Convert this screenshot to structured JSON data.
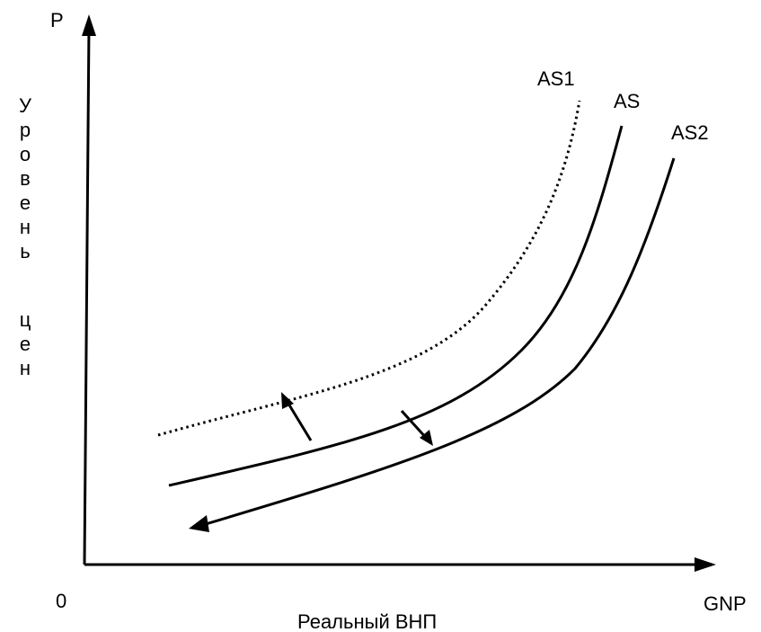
{
  "axes": {
    "y_name": "P",
    "x_name": "GNP",
    "origin": "0",
    "x_title": "Реальный ВНП",
    "y_title_word1": [
      "У",
      "р",
      "о",
      "в",
      "е",
      "н",
      "ь"
    ],
    "y_title_word2": [
      "ц",
      "е",
      "н"
    ]
  },
  "curves": {
    "as1": {
      "label": "AS1",
      "style": "dotted"
    },
    "as": {
      "label": "AS",
      "style": "solid"
    },
    "as2": {
      "label": "AS2",
      "style": "solid"
    }
  },
  "colors": {
    "line": "#000000",
    "background": "#ffffff"
  }
}
